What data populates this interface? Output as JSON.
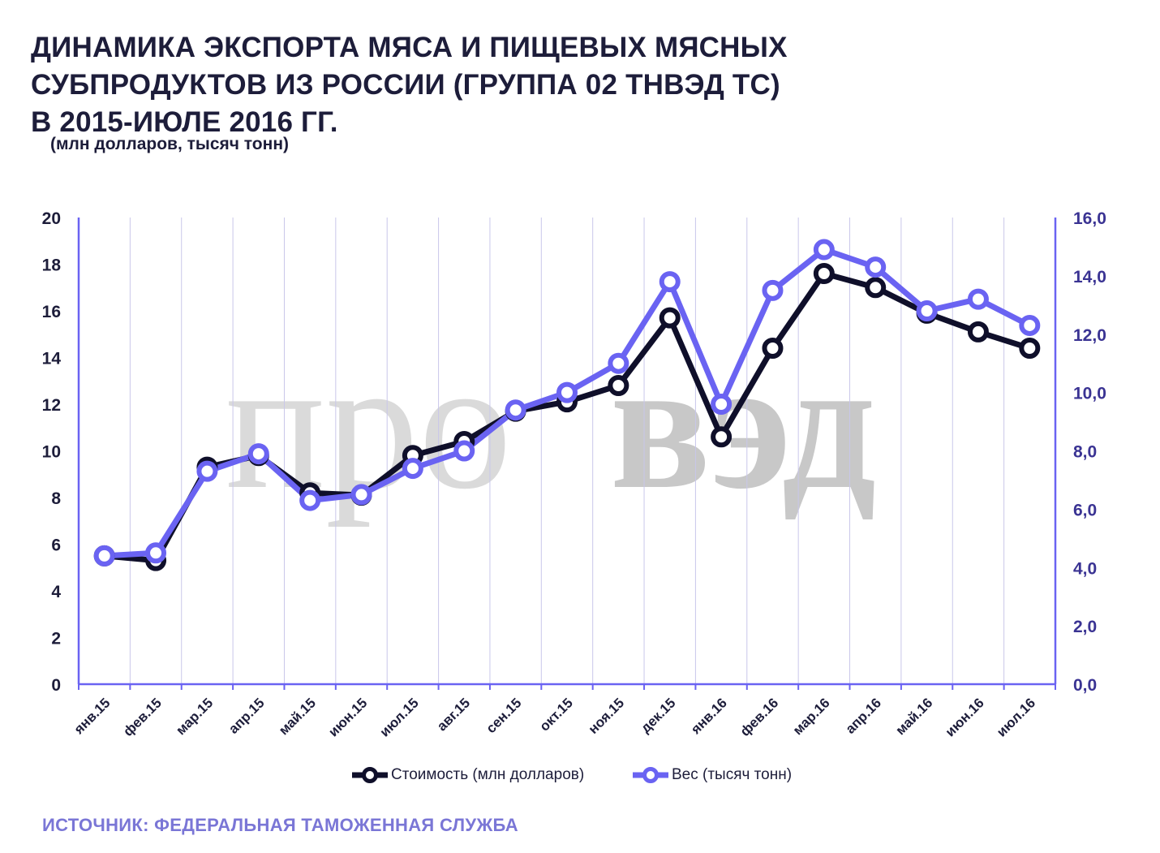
{
  "header": {
    "title_lines": [
      "ДИНАМИКА ЭКСПОРТА МЯСА И ПИЩЕВЫХ МЯСНЫХ",
      "СУБПРОДУКТОВ ИЗ РОССИИ (ГРУППА 02 ТНВЭД ТС)",
      "В 2015-ИЮЛЕ 2016 ГГ."
    ],
    "subtitle": "(млн долларов, тысяч тонн)"
  },
  "watermark": {
    "text_light": "про",
    "text_bold": "вэд"
  },
  "footer": {
    "source": "ИСТОЧНИК: ФЕДЕРАЛЬНАЯ ТАМОЖЕННАЯ  СЛУЖБА"
  },
  "colors": {
    "series_cost": "#0f0f2a",
    "series_weight": "#6a63f2",
    "axis_left_text": "#1d1d3a",
    "axis_right_text": "#3a3393",
    "gridline": "#c9c7ea",
    "axis_line": "#6a63f2",
    "watermark": "#d9d9d9"
  },
  "chart_data": {
    "type": "line",
    "categories": [
      "янв.15",
      "фев.15",
      "мар.15",
      "апр.15",
      "май.15",
      "июн.15",
      "июл.15",
      "авг.15",
      "сен.15",
      "окт.15",
      "ноя.15",
      "дек.15",
      "янв.16",
      "фев.16",
      "мар.16",
      "апр.16",
      "май.16",
      "июн.16",
      "июл.16"
    ],
    "series": [
      {
        "name": "Стоимость (млн  долларов)",
        "axis": "left",
        "color": "#0f0f2a",
        "values": [
          5.5,
          5.3,
          9.3,
          9.8,
          8.2,
          8.1,
          9.8,
          10.4,
          11.7,
          12.1,
          12.8,
          15.7,
          10.6,
          14.4,
          17.6,
          17.0,
          15.9,
          15.1,
          14.4
        ]
      },
      {
        "name": "Вес (тысяч тонн)",
        "axis": "right",
        "color": "#6a63f2",
        "values": [
          4.4,
          4.5,
          7.3,
          7.9,
          6.3,
          6.5,
          7.4,
          8.0,
          9.4,
          10.0,
          11.0,
          13.8,
          9.6,
          13.5,
          14.9,
          14.3,
          12.8,
          13.2,
          12.3
        ]
      }
    ],
    "y_left": {
      "min": 0,
      "max": 20,
      "ticks": [
        "0",
        "2",
        "4",
        "6",
        "8",
        "10",
        "12",
        "14",
        "16",
        "18",
        "20"
      ]
    },
    "y_right": {
      "min": 0,
      "max": 16,
      "ticks": [
        "0,0",
        "2,0",
        "4,0",
        "6,0",
        "8,0",
        "10,0",
        "12,0",
        "14,0",
        "16,0"
      ]
    },
    "grid": "vertical",
    "legend_position": "bottom"
  }
}
